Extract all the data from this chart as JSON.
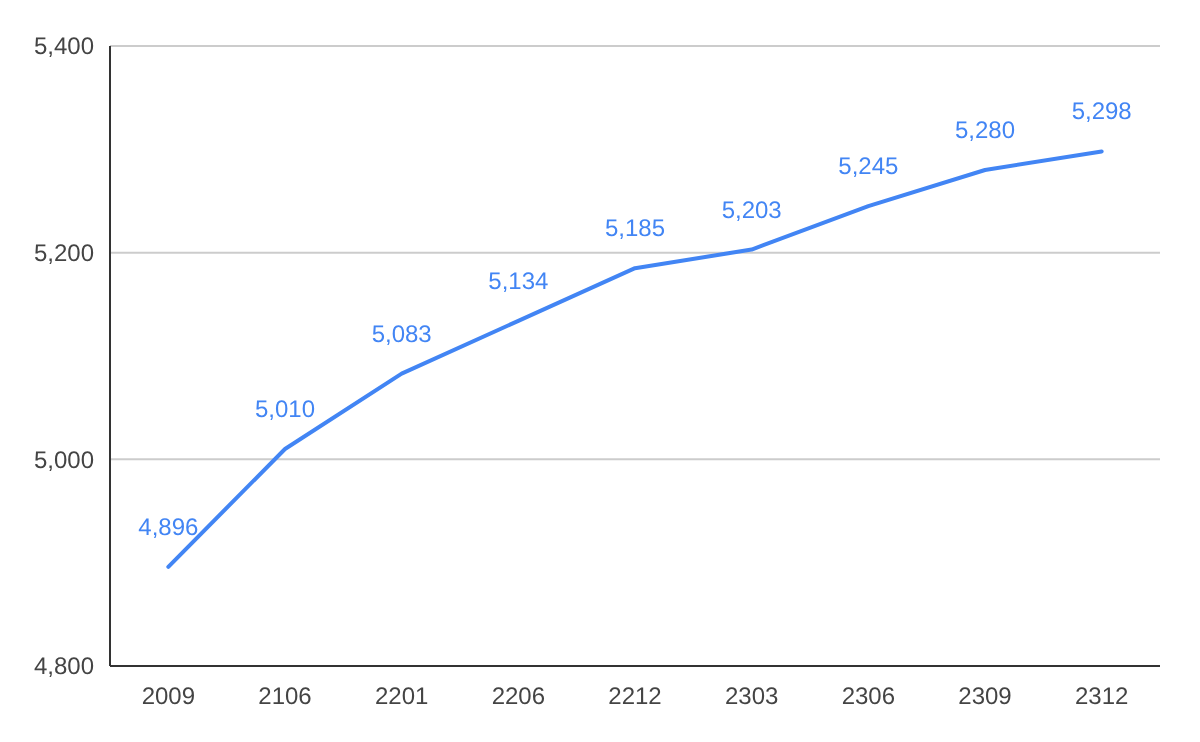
{
  "chart_data": {
    "type": "line",
    "categories": [
      "2009",
      "2106",
      "2201",
      "2206",
      "2212",
      "2303",
      "2306",
      "2309",
      "2312"
    ],
    "series": [
      {
        "color": "#4285f4",
        "values": [
          4896,
          5010,
          5083,
          5134,
          5185,
          5203,
          5245,
          5280,
          5298
        ],
        "value_labels": [
          "4,896",
          "5,010",
          "5,083",
          "5,134",
          "5,185",
          "5,203",
          "5,245",
          "5,280",
          "5,298"
        ]
      }
    ],
    "ylim": [
      4800,
      5400
    ],
    "yticks": [
      {
        "value": 4800,
        "label": "4,800"
      },
      {
        "value": 5000,
        "label": "5,000"
      },
      {
        "value": 5200,
        "label": "5,200"
      },
      {
        "value": 5400,
        "label": "5,400"
      }
    ],
    "grid": "y",
    "marker": "none",
    "line_style": "solid"
  }
}
